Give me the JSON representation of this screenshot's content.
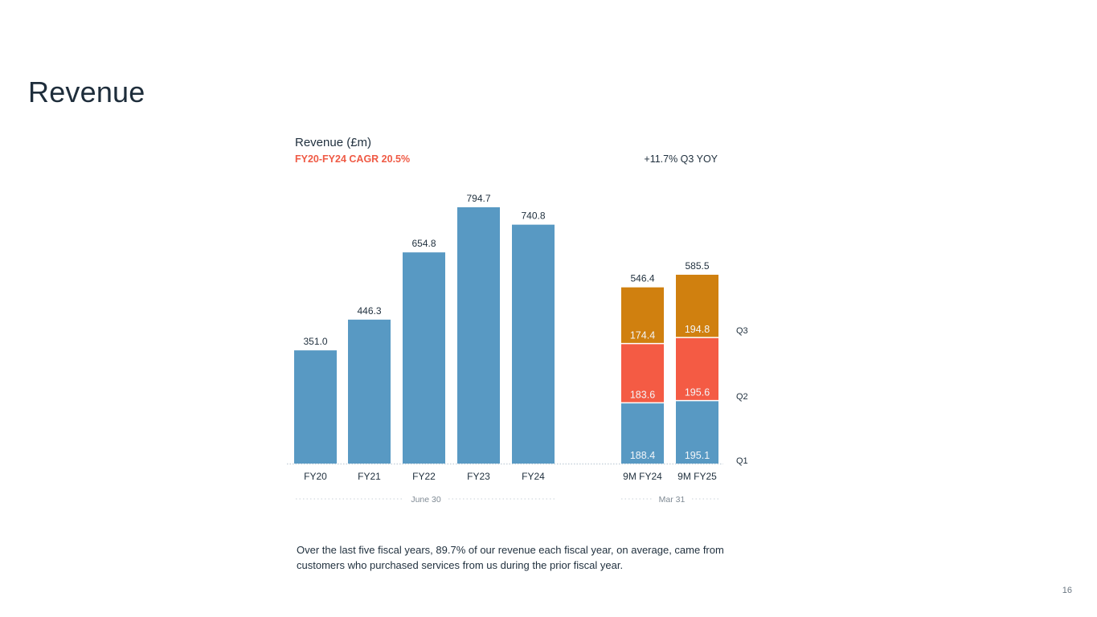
{
  "page": {
    "title": "Revenue",
    "page_number": "16",
    "footnote": "Over the last five fiscal years, 89.7% of our revenue each fiscal year, on average, came from customers who purchased services from us during the prior fiscal year."
  },
  "colors": {
    "bar_blue": "#5899c3",
    "q2_red": "#f45b44",
    "q3_orange": "#d0800f",
    "accent_red": "#ef5a45",
    "text_dark": "#1f2f3d",
    "muted": "#7f8a94"
  },
  "chart_data": {
    "type": "bar",
    "title": "Revenue (£m)",
    "subtitle": "FY20-FY24 CAGR 20.5%",
    "annotation": "+11.7% Q3 YOY",
    "ylim": [
      0,
      794.7
    ],
    "annual": {
      "group_label": "June 30",
      "categories": [
        "FY20",
        "FY21",
        "FY22",
        "FY23",
        "FY24"
      ],
      "values": [
        351.0,
        446.3,
        654.8,
        794.7,
        740.8
      ],
      "labels": [
        "351.0",
        "446.3",
        "654.8",
        "794.7",
        "740.8"
      ]
    },
    "nine_month": {
      "group_label": "Mar 31",
      "categories": [
        "9M FY24",
        "9M FY25"
      ],
      "series": [
        {
          "name": "Q1",
          "values": [
            188.4,
            195.1
          ],
          "labels": [
            "188.4",
            "195.1"
          ]
        },
        {
          "name": "Q2",
          "values": [
            183.6,
            195.6
          ],
          "labels": [
            "183.6",
            "195.6"
          ]
        },
        {
          "name": "Q3",
          "values": [
            174.4,
            194.8
          ],
          "labels": [
            "174.4",
            "194.8"
          ]
        }
      ],
      "totals": [
        546.4,
        585.5
      ],
      "total_labels": [
        "546.4",
        "585.5"
      ]
    },
    "legend": [
      "Q1",
      "Q2",
      "Q3"
    ]
  }
}
